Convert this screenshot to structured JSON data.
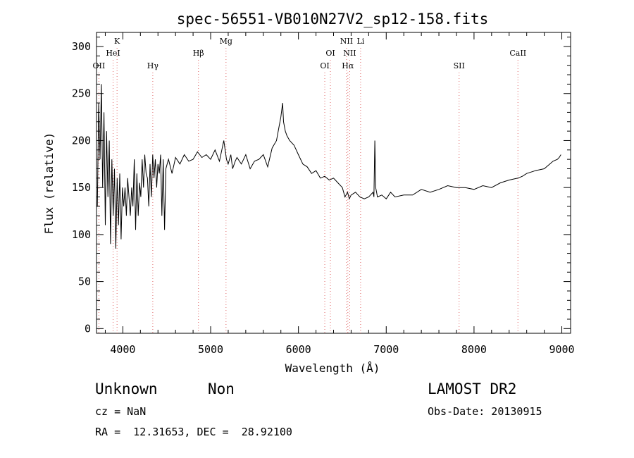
{
  "chart_data": {
    "type": "line",
    "title": "spec-56551-VB010N27V2_sp12-158.fits",
    "xlabel": "Wavelength (Å)",
    "ylabel": "Flux (relative)",
    "xlim": [
      3700,
      9100
    ],
    "ylim": [
      -5,
      315
    ],
    "xticks": [
      4000,
      5000,
      6000,
      7000,
      8000,
      9000
    ],
    "yticks": [
      0,
      50,
      100,
      150,
      200,
      250,
      300
    ],
    "grid": false,
    "line_color": "#000000",
    "marker_color": "#e06666",
    "series": [
      {
        "x": [
          3710,
          3725,
          3740,
          3755,
          3770,
          3785,
          3800,
          3815,
          3830,
          3845,
          3860,
          3875,
          3890,
          3905,
          3920,
          3935,
          3950,
          3965,
          3980,
          3995,
          4010,
          4025,
          4040,
          4055,
          4070,
          4085,
          4100,
          4115,
          4130,
          4145,
          4160,
          4175,
          4190,
          4205,
          4220,
          4235,
          4250,
          4265,
          4280,
          4295,
          4310,
          4325,
          4340,
          4355,
          4370,
          4385,
          4400,
          4415,
          4430,
          4445,
          4460,
          4475,
          4490,
          4505,
          4520,
          4560,
          4600,
          4650,
          4700,
          4750,
          4800,
          4850,
          4900,
          4950,
          5000,
          5050,
          5100,
          5150,
          5180,
          5200,
          5230,
          5250,
          5280,
          5300,
          5350,
          5400,
          5450,
          5500,
          5550,
          5600,
          5650,
          5700,
          5750,
          5780,
          5800,
          5820,
          5830,
          5850,
          5870,
          5900,
          5950,
          6000,
          6050,
          6100,
          6150,
          6200,
          6250,
          6300,
          6350,
          6400,
          6450,
          6500,
          6530,
          6560,
          6580,
          6600,
          6650,
          6700,
          6750,
          6800,
          6850,
          6860,
          6870,
          6880,
          6890,
          6900,
          6950,
          7000,
          7050,
          7100,
          7200,
          7300,
          7400,
          7500,
          7600,
          7700,
          7800,
          7900,
          8000,
          8100,
          8200,
          8300,
          8400,
          8500,
          8550,
          8600,
          8700,
          8800,
          8900,
          8950,
          8970,
          8990
        ],
        "values": [
          130,
          240,
          180,
          260,
          150,
          230,
          110,
          210,
          140,
          200,
          90,
          180,
          120,
          170,
          85,
          160,
          110,
          165,
          95,
          150,
          130,
          150,
          120,
          160,
          140,
          120,
          150,
          130,
          180,
          105,
          165,
          120,
          155,
          140,
          180,
          150,
          185,
          165,
          160,
          130,
          175,
          140,
          185,
          160,
          180,
          150,
          175,
          165,
          185,
          120,
          180,
          105,
          170,
          175,
          180,
          165,
          182,
          175,
          185,
          178,
          180,
          188,
          182,
          185,
          180,
          190,
          178,
          200,
          180,
          175,
          185,
          170,
          178,
          182,
          175,
          185,
          170,
          178,
          180,
          185,
          172,
          192,
          200,
          215,
          225,
          240,
          220,
          210,
          205,
          200,
          195,
          185,
          175,
          172,
          165,
          168,
          160,
          162,
          158,
          160,
          155,
          150,
          140,
          145,
          138,
          142,
          145,
          140,
          138,
          140,
          145,
          140,
          200,
          150,
          145,
          140,
          142,
          138,
          145,
          140,
          142,
          142,
          148,
          145,
          148,
          152,
          150,
          150,
          148,
          152,
          150,
          155,
          158,
          160,
          162,
          165,
          168,
          170,
          178,
          180,
          182,
          185
        ],
        "values_precision": "approx"
      }
    ],
    "line_markers": [
      {
        "label": "OII",
        "x": 3727,
        "row": 3
      },
      {
        "label": "K",
        "x": 3934,
        "row": 1
      },
      {
        "label": "HeI",
        "x": 3889,
        "row": 2
      },
      {
        "label": "Hγ",
        "x": 4341,
        "row": 3
      },
      {
        "label": "Hβ",
        "x": 4861,
        "row": 2
      },
      {
        "label": "Mg",
        "x": 5175,
        "row": 1
      },
      {
        "label": "OI",
        "x": 6300,
        "row": 3
      },
      {
        "label": "OI",
        "x": 6364,
        "row": 2
      },
      {
        "label": "NII",
        "x": 6548,
        "row": 1
      },
      {
        "label": "NII",
        "x": 6584,
        "row": 2
      },
      {
        "label": "Hα",
        "x": 6563,
        "row": 3
      },
      {
        "label": "Li",
        "x": 6708,
        "row": 1
      },
      {
        "label": "SII",
        "x": 7830,
        "row": 3
      },
      {
        "label": "CaII",
        "x": 8500,
        "row": 2
      }
    ]
  },
  "info": {
    "class": "Unknown",
    "subclass": "Non",
    "survey": "LAMOST DR2",
    "cz": "cz = NaN",
    "obs_date": "Obs-Date: 20130915",
    "coords": "RA =  12.31653, DEC =  28.92100"
  }
}
